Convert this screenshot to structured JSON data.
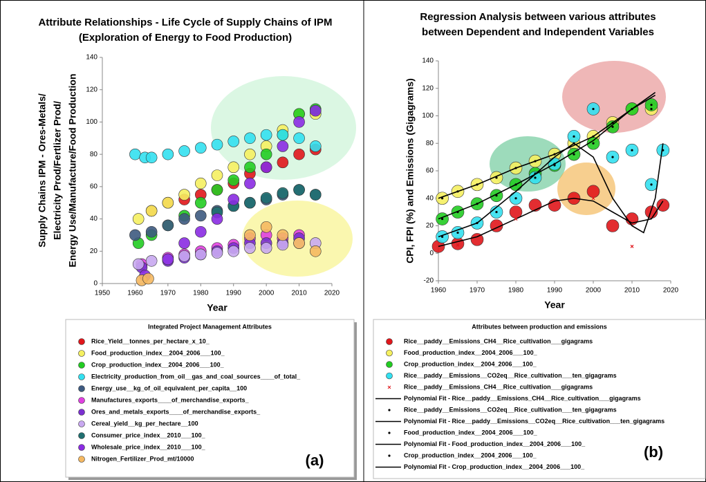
{
  "chart_data": [
    {
      "type": "scatter",
      "title": [
        "Attribute Relationships - Life Cycle of Supply Chains of IPM",
        "(Exploration of Energy to Food Production)"
      ],
      "x_label": "Year",
      "y_label": [
        "Supply Chains IPM - Ores-Metals/",
        "Electricity Prod/Fertlizer Prod/",
        "Energy Use/Manufacture/Food Production"
      ],
      "legend_title": "Integrated Project Management Attributes",
      "panel_label": "(a)",
      "xlim": [
        1950,
        2020
      ],
      "xticks": [
        1950,
        1960,
        1970,
        1980,
        1990,
        2000,
        2010,
        2020
      ],
      "ylim": [
        0,
        140
      ],
      "yticks": [
        0,
        20,
        40,
        60,
        80,
        100,
        120,
        140
      ],
      "series": [
        {
          "name": "Rice_Yield__tonnes_per_hectare_x_10_",
          "color": "#e0161b",
          "mark": "bubble",
          "x": [
            1965,
            1970,
            1975,
            1980,
            1985,
            1990,
            1995,
            2000,
            2005,
            2010,
            2015
          ],
          "values": [
            45,
            50,
            52,
            55,
            58,
            62,
            68,
            72,
            75,
            80,
            83
          ]
        },
        {
          "name": "Food_production_index__2004_2006___100_",
          "color": "#f5f060",
          "mark": "bubble",
          "x": [
            1961,
            1965,
            1970,
            1975,
            1980,
            1985,
            1990,
            1995,
            2000,
            2005,
            2010,
            2015
          ],
          "values": [
            40,
            45,
            50,
            55,
            62,
            67,
            72,
            80,
            85,
            95,
            105,
            105
          ]
        },
        {
          "name": "Crop_production_index__2004_2006___100_",
          "color": "#22cc22",
          "mark": "bubble",
          "x": [
            1961,
            1965,
            1970,
            1975,
            1980,
            1985,
            1990,
            1995,
            2000,
            2005,
            2010,
            2015
          ],
          "values": [
            25,
            30,
            36,
            42,
            50,
            58,
            64,
            72,
            80,
            92,
            105,
            108
          ]
        },
        {
          "name": "Electricity_production_from_oil__gas_and_coal_sources____of_total_",
          "color": "#33e0f0",
          "mark": "bubble",
          "x": [
            1960,
            1963,
            1965,
            1970,
            1975,
            1980,
            1985,
            1990,
            1995,
            2000,
            2005,
            2010,
            2015
          ],
          "values": [
            80,
            78,
            78,
            80,
            82,
            84,
            86,
            88,
            90,
            92,
            92,
            90,
            85
          ]
        },
        {
          "name": "Energy_use__kg_of_oil_equivalent_per_capita__100",
          "color": "#3d5a80",
          "mark": "bubble",
          "x": [
            1960,
            1965,
            1970,
            1975,
            1980,
            1985,
            1990,
            1995,
            2000,
            2005,
            2010,
            2015
          ],
          "values": [
            30,
            32,
            36,
            40,
            42,
            45,
            48,
            50,
            52,
            55,
            58,
            55
          ]
        },
        {
          "name": "Manufactures_exports____of_merchandise_exports_",
          "color": "#e040e0",
          "mark": "bubble",
          "x": [
            1962,
            1970,
            1975,
            1980,
            1985,
            1990,
            1995,
            2000,
            2005,
            2010
          ],
          "values": [
            12,
            16,
            18,
            20,
            22,
            24,
            28,
            30,
            28,
            30
          ]
        },
        {
          "name": "Ores_and_metals_exports____of_merchandise_exports_",
          "color": "#7a2fd0",
          "mark": "bubble",
          "x": [
            1962,
            1970,
            1975,
            1980,
            1985,
            1990,
            1995,
            2000,
            2005,
            2010
          ],
          "values": [
            10,
            14,
            16,
            18,
            20,
            22,
            25,
            25,
            25,
            28
          ]
        },
        {
          "name": "Cereal_yield__kg_per_hectare__100",
          "color": "#c8a8f0",
          "mark": "bubble",
          "x": [
            1961,
            1965,
            1970,
            1975,
            1980,
            1985,
            1990,
            1995,
            2000,
            2005,
            2010,
            2015
          ],
          "values": [
            12,
            14,
            15,
            17,
            18,
            19,
            20,
            22,
            22,
            24,
            25,
            25
          ]
        },
        {
          "name": "Consumer_price_index__2010___100_",
          "color": "#1f6f70",
          "mark": "bubble",
          "x": [
            1985,
            1990,
            1995,
            2000,
            2005,
            2010,
            2015
          ],
          "values": [
            44,
            48,
            50,
            53,
            56,
            58,
            55
          ]
        },
        {
          "name": "Wholesale_price_index__2010___100_",
          "color": "#8a2be2",
          "mark": "bubble",
          "x": [
            1963,
            1970,
            1975,
            1980,
            1985,
            1990,
            1995,
            2000,
            2005,
            2010,
            2015
          ],
          "values": [
            5,
            15,
            25,
            32,
            40,
            52,
            62,
            72,
            85,
            100,
            107
          ]
        },
        {
          "name": "Nitrogen_Fertilizer_Prod_mt/10000",
          "color": "#f5b861",
          "mark": "bubble",
          "x": [
            1962,
            1964,
            1995,
            2000,
            2005,
            2010,
            2015
          ],
          "values": [
            2,
            3,
            30,
            35,
            30,
            25,
            20
          ]
        }
      ]
    },
    {
      "type": "scatter",
      "title": [
        "Regression Analysis between various attributes",
        "between Dependent and Independent Variables"
      ],
      "x_label": "Year",
      "y_label": [
        "CPI, FPI (%) and Emissions (Gigagrams)"
      ],
      "legend_title": "Attributes between production and emissions",
      "panel_label": "(b)",
      "xlim": [
        1960,
        2020
      ],
      "xticks": [
        1960,
        1970,
        1980,
        1990,
        2000,
        2010,
        2020
      ],
      "ylim": [
        -20,
        140
      ],
      "yticks": [
        -20,
        0,
        20,
        40,
        60,
        80,
        100,
        120,
        140
      ],
      "series": [
        {
          "name": "Rice__paddy__Emissions_CH4__Rice_cultivation___gigagrams",
          "color": "#e0161b",
          "mark": "bubble",
          "x": [
            1960,
            1965,
            1970,
            1975,
            1980,
            1985,
            1990,
            1995,
            2000,
            2005,
            2010,
            2015,
            2018
          ],
          "values": [
            5,
            7,
            10,
            20,
            30,
            35,
            35,
            40,
            45,
            20,
            25,
            30,
            35
          ]
        },
        {
          "name": "Food_production_index__2004_2006___100_",
          "color": "#f5f060",
          "mark": "bubble",
          "x": [
            1961,
            1965,
            1970,
            1975,
            1980,
            1985,
            1990,
            1995,
            2000,
            2005,
            2010,
            2015
          ],
          "values": [
            40,
            45,
            50,
            55,
            62,
            67,
            72,
            80,
            85,
            95,
            105,
            105
          ]
        },
        {
          "name": "Crop_production_index__2004_2006___100_",
          "color": "#22cc22",
          "mark": "bubble",
          "x": [
            1961,
            1965,
            1970,
            1975,
            1980,
            1985,
            1990,
            1995,
            2000,
            2005,
            2010,
            2015
          ],
          "values": [
            25,
            30,
            36,
            42,
            50,
            58,
            64,
            72,
            80,
            92,
            105,
            108
          ]
        },
        {
          "name": "Rice__paddy__Emissions__CO2eq__Rice_cultivation___ten_gigagrams",
          "color": "#33e0f0",
          "mark": "bubble",
          "x": [
            1961,
            1965,
            1970,
            1975,
            1980,
            1985,
            1990,
            1995,
            2000,
            2005,
            2010,
            2015,
            2018
          ],
          "values": [
            12,
            15,
            22,
            30,
            40,
            55,
            65,
            85,
            105,
            70,
            75,
            50,
            75
          ]
        },
        {
          "name": "Rice__paddy__Emissions_CH4__Rice_cultivation___gigagrams",
          "color": "#e0161b",
          "mark": "cross",
          "x": [
            1965,
            1980,
            2000,
            2010
          ],
          "values": [
            6,
            25,
            40,
            5
          ]
        },
        {
          "name": "Polynomial Fit - Rice__paddy__Emissions_CH4__Rice_cultivation___gigagrams",
          "color": "#000000",
          "mark": "line",
          "x": [
            1960,
            1970,
            1980,
            1990,
            1995,
            2000,
            2005,
            2010,
            2015,
            2018
          ],
          "values": [
            5,
            12,
            25,
            38,
            40,
            38,
            30,
            22,
            25,
            38
          ]
        },
        {
          "name": "Rice__paddy__Emissions__CO2eq__Rice_cultivation___ten_gigagrams",
          "color": "#000000",
          "mark": "dot",
          "x": [
            1961,
            1965,
            1970,
            1975,
            1980,
            1985,
            1990,
            1995,
            2000,
            2005,
            2010,
            2015,
            2018
          ],
          "values": [
            12,
            15,
            22,
            30,
            40,
            55,
            65,
            85,
            105,
            70,
            75,
            50,
            75
          ]
        },
        {
          "name": "Polynomial Fit - Rice__paddy__Emissions__CO2eq__Rice_cultivation___ten_gigagrams",
          "color": "#000000",
          "mark": "line",
          "x": [
            1960,
            1970,
            1980,
            1990,
            1995,
            2000,
            2005,
            2010,
            2013,
            2016,
            2018
          ],
          "values": [
            12,
            22,
            45,
            70,
            80,
            70,
            40,
            20,
            15,
            40,
            80
          ]
        },
        {
          "name": "Food_production_index__2004_2006___100_",
          "color": "#000000",
          "mark": "dot",
          "x": [
            1961,
            1965,
            1970,
            1975,
            1980,
            1985,
            1990,
            1995,
            2000,
            2005,
            2010,
            2015
          ],
          "values": [
            40,
            45,
            50,
            55,
            62,
            67,
            72,
            80,
            85,
            95,
            105,
            105
          ]
        },
        {
          "name": "Polynomial Fit - Food_production_index__2004_2006___100_",
          "color": "#000000",
          "mark": "line",
          "x": [
            1960,
            1970,
            1980,
            1990,
            2000,
            2010,
            2016
          ],
          "values": [
            40,
            50,
            62,
            72,
            85,
            105,
            115
          ]
        },
        {
          "name": "Crop_production_index__2004_2006___100_",
          "color": "#000000",
          "mark": "dot",
          "x": [
            1961,
            1965,
            1970,
            1975,
            1980,
            1985,
            1990,
            1995,
            2000,
            2005,
            2010,
            2015
          ],
          "values": [
            25,
            30,
            36,
            42,
            50,
            58,
            64,
            72,
            80,
            92,
            105,
            108
          ]
        },
        {
          "name": "Polynomial Fit - Crop_production_index__2004_2006___100_",
          "color": "#000000",
          "mark": "line",
          "x": [
            1960,
            1970,
            1980,
            1990,
            2000,
            2010,
            2016
          ],
          "values": [
            25,
            36,
            50,
            65,
            82,
            105,
            117
          ]
        }
      ]
    }
  ]
}
